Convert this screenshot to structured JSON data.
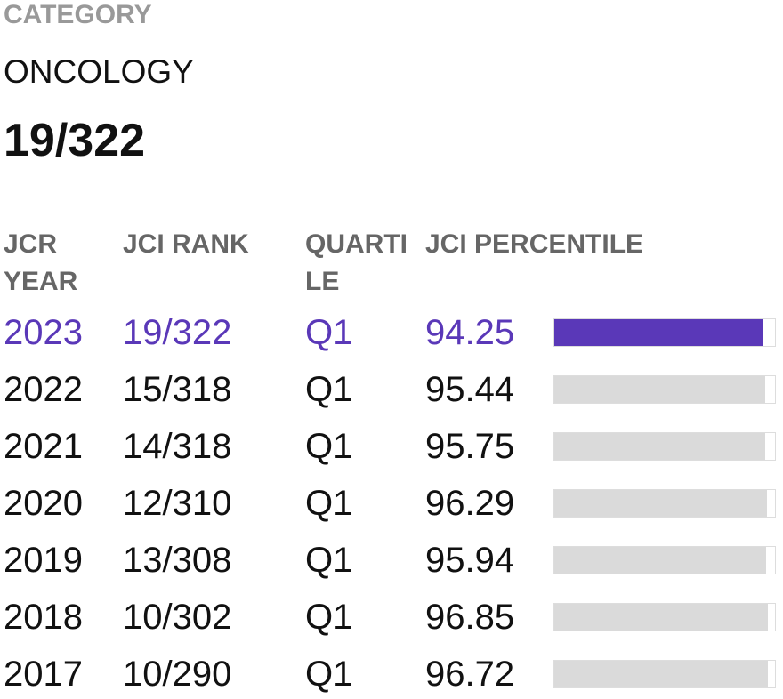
{
  "header": {
    "label": "CATEGORY",
    "category": "ONCOLOGY",
    "rank": "19/322"
  },
  "table": {
    "columns": [
      "JCR YEAR",
      "JCI RANK",
      "QUARTILE",
      "JCI PERCENTILE"
    ],
    "rows": [
      {
        "year": "2023",
        "rank": "19/322",
        "quartile": "Q1",
        "percentile": 94.25
      },
      {
        "year": "2022",
        "rank": "15/318",
        "quartile": "Q1",
        "percentile": 95.44
      },
      {
        "year": "2021",
        "rank": "14/318",
        "quartile": "Q1",
        "percentile": 95.75
      },
      {
        "year": "2020",
        "rank": "12/310",
        "quartile": "Q1",
        "percentile": 96.29
      },
      {
        "year": "2019",
        "rank": "13/308",
        "quartile": "Q1",
        "percentile": 95.94
      },
      {
        "year": "2018",
        "rank": "10/302",
        "quartile": "Q1",
        "percentile": 96.85
      },
      {
        "year": "2017",
        "rank": "10/290",
        "quartile": "Q1",
        "percentile": 96.72
      }
    ]
  }
}
